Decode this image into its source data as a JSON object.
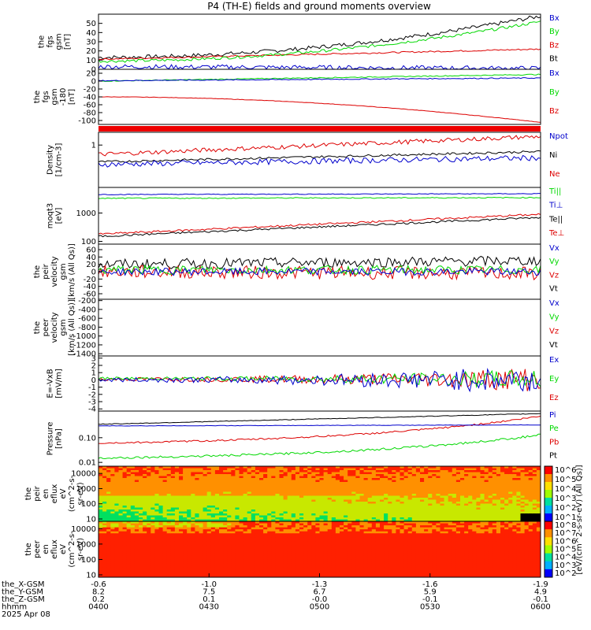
{
  "title": "P4 (TH-E) fields and ground moments overview",
  "colors": {
    "black": "#000000",
    "red": "#dd0000",
    "green": "#00d800",
    "blue": "#0000cc"
  },
  "chart_data": [
    {
      "type": "line",
      "ylabel": [
        "the",
        "fgs",
        "gsm",
        "[nT]"
      ],
      "ylim": [
        0,
        60
      ],
      "yticks": [
        0,
        10,
        20,
        30,
        40,
        50
      ],
      "series": [
        {
          "name": "Bt",
          "color": "#000000",
          "start": 13,
          "end": 58,
          "noise": 2.2,
          "shape": "quad"
        },
        {
          "name": "Bz",
          "color": "#dd0000",
          "start": 11,
          "end": 22,
          "noise": 0.8,
          "shape": "lin"
        },
        {
          "name": "By",
          "color": "#00d800",
          "start": 9,
          "end": 52,
          "noise": 1.6,
          "shape": "quad"
        },
        {
          "name": "Bx",
          "color": "#0000cc",
          "start": 3,
          "end": 1,
          "noise": 2.5,
          "shape": "lin"
        }
      ]
    },
    {
      "type": "line",
      "ylabel": [
        "the",
        "fgs",
        "gsm",
        "-180",
        "[nT]"
      ],
      "ylim": [
        -110,
        30
      ],
      "yticks": [
        20,
        0,
        -20,
        -40,
        -60,
        -80,
        -100
      ],
      "series": [
        {
          "name": "Bz",
          "color": "#dd0000",
          "start": -40,
          "end": -105,
          "noise": 0.5,
          "shape": "quad"
        },
        {
          "name": "By",
          "color": "#00d800",
          "start": 0,
          "end": 17,
          "noise": 1.2,
          "shape": "lin"
        },
        {
          "name": "Bx",
          "color": "#0000cc",
          "start": 1,
          "end": 8,
          "noise": 1.2,
          "shape": "lin"
        }
      ]
    },
    {
      "type": "line",
      "ylabel": [
        "Density",
        "[1/cm-3]"
      ],
      "ylim": [
        0.1,
        2
      ],
      "log": true,
      "yticks": [
        1
      ],
      "series": [
        {
          "name": "Ne",
          "color": "#dd0000",
          "start": 0.6,
          "end": 1.6,
          "noise": 0.12,
          "shape": "lin"
        },
        {
          "name": "Ni",
          "color": "#000000",
          "start": 0.4,
          "end": 0.7,
          "noise": 0.06,
          "shape": "lin"
        },
        {
          "name": "Npot",
          "color": "#0000cc",
          "start": 0.35,
          "end": 0.5,
          "noise": 0.15,
          "shape": "lin"
        }
      ]
    },
    {
      "type": "line",
      "ylabel": [
        "moqt3",
        "[eV]"
      ],
      "ylim": [
        80,
        8000
      ],
      "log": true,
      "yticks": [
        100,
        1000
      ],
      "series": [
        {
          "name": "Te⊥",
          "color": "#dd0000",
          "start": 180,
          "end": 900,
          "noise": 0.08,
          "shape": "lin"
        },
        {
          "name": "Te||",
          "color": "#000000",
          "start": 150,
          "end": 700,
          "noise": 0.08,
          "shape": "lin"
        },
        {
          "name": "Ti⊥",
          "color": "#0000cc",
          "start": 4500,
          "end": 4800,
          "noise": 0.03,
          "shape": "lin"
        },
        {
          "name": "Ti||",
          "color": "#00d800",
          "start": 3300,
          "end": 3500,
          "noise": 0.04,
          "shape": "lin"
        }
      ]
    },
    {
      "type": "line",
      "ylabel": [
        "the",
        "peir",
        "velocity",
        "gsm",
        "[km/s (All Qs)]"
      ],
      "ylim": [
        -75,
        75
      ],
      "yticks": [
        60,
        40,
        20,
        0,
        -20,
        -40,
        -60
      ],
      "series": [
        {
          "name": "Vt",
          "color": "#000000",
          "start": 20,
          "end": 30,
          "noise": 14,
          "shape": "lin"
        },
        {
          "name": "Vz",
          "color": "#dd0000",
          "start": 0,
          "end": -5,
          "noise": 18,
          "shape": "lin"
        },
        {
          "name": "Vy",
          "color": "#00d800",
          "start": 5,
          "end": 5,
          "noise": 12,
          "shape": "lin"
        },
        {
          "name": "Vx",
          "color": "#0000cc",
          "start": 0,
          "end": 0,
          "noise": 10,
          "shape": "lin"
        }
      ]
    },
    {
      "type": "line",
      "ylabel": [
        "the",
        "peer",
        "velocity",
        "gsm",
        "[km/s (All Qs)]"
      ],
      "ylim": [
        -1450,
        -170
      ],
      "yticks": [
        -200,
        -400,
        -600,
        -800,
        -1000,
        -1200,
        -1400
      ],
      "series": [
        {
          "name": "Vt",
          "color": "#000000"
        },
        {
          "name": "Vz",
          "color": "#dd0000"
        },
        {
          "name": "Vy",
          "color": "#00d800"
        },
        {
          "name": "Vx",
          "color": "#0000cc"
        }
      ]
    },
    {
      "type": "line",
      "ylabel": [
        "E=-VxB",
        "[mV/m]"
      ],
      "ylim": [
        -4.3,
        3.3
      ],
      "yticks": [
        3,
        2,
        1,
        0,
        -1,
        -2,
        -3,
        -4
      ],
      "series": [
        {
          "name": "Ez",
          "color": "#dd0000",
          "start": 0.1,
          "end": 0.1,
          "noise": 0.25,
          "shape": "grow"
        },
        {
          "name": "Ey",
          "color": "#00d800",
          "start": 0.2,
          "end": 0.1,
          "noise": 0.2,
          "shape": "grow"
        },
        {
          "name": "Ex",
          "color": "#0000cc",
          "start": 0,
          "end": 0,
          "noise": 0.3,
          "shape": "grow"
        }
      ]
    },
    {
      "type": "line",
      "ylabel": [
        "Pressure",
        "[nPa]"
      ],
      "ylim": [
        0.007,
        1.2
      ],
      "log": true,
      "yticks": [
        0.01,
        0.1
      ],
      "yticklabels": [
        "0.01",
        "0.10"
      ],
      "series": [
        {
          "name": "Pt",
          "color": "#000000",
          "start": 0.35,
          "end": 0.95,
          "noise": 0.03,
          "shape": "lin"
        },
        {
          "name": "Pb",
          "color": "#dd0000",
          "start": 0.06,
          "end": 0.75,
          "noise": 0.08,
          "shape": "exp"
        },
        {
          "name": "Pe",
          "color": "#00d800",
          "start": 0.015,
          "end": 0.13,
          "noise": 0.1,
          "shape": "exp"
        },
        {
          "name": "Pi",
          "color": "#0000cc",
          "start": 0.3,
          "end": 0.33,
          "noise": 0.02,
          "shape": "lin"
        }
      ]
    },
    {
      "type": "heatmap",
      "ylabel": [
        "the",
        "peir",
        "en",
        "eflux",
        "eV",
        "(cm^2-s-",
        "sr-eV)"
      ],
      "ylim": [
        7,
        30000
      ],
      "log": true,
      "yticks": [
        10,
        100,
        1000,
        10000
      ],
      "colorbar_labels": [
        "10^6",
        "10^5",
        "10^4",
        "10^3",
        "10^2",
        "10^1"
      ]
    },
    {
      "type": "heatmap",
      "ylabel": [
        "the",
        "peer",
        "en",
        "eflux",
        "eV",
        "(cm^2-s-",
        "sr-eV)"
      ],
      "ylim": [
        7,
        30000
      ],
      "log": true,
      "yticks": [
        10,
        100,
        1000,
        10000
      ],
      "colorbar_labels": [
        "10^8",
        "10^7",
        "10^6",
        "10^5",
        "10^4",
        "10^3",
        "10^2"
      ]
    }
  ],
  "colorbar_title": "[eV/(cm^2-s-sr-eV) (All Qs)]",
  "axis_rows": [
    {
      "label": "the_X-GSM",
      "values": [
        "-0.6",
        "-1.0",
        "-1.3",
        "-1.6",
        "-1.9"
      ]
    },
    {
      "label": "the_Y-GSM",
      "values": [
        "8.2",
        "7.5",
        "6.7",
        "5.9",
        "4.9"
      ]
    },
    {
      "label": "the_Z-GSM",
      "values": [
        "0.2",
        "0.1",
        "-0.0",
        "-0.1",
        "-0.1"
      ]
    },
    {
      "label": "hhmm",
      "values": [
        "0400",
        "0430",
        "0500",
        "0530",
        "0600"
      ]
    },
    {
      "label": "2025 Apr 08",
      "values": []
    }
  ]
}
